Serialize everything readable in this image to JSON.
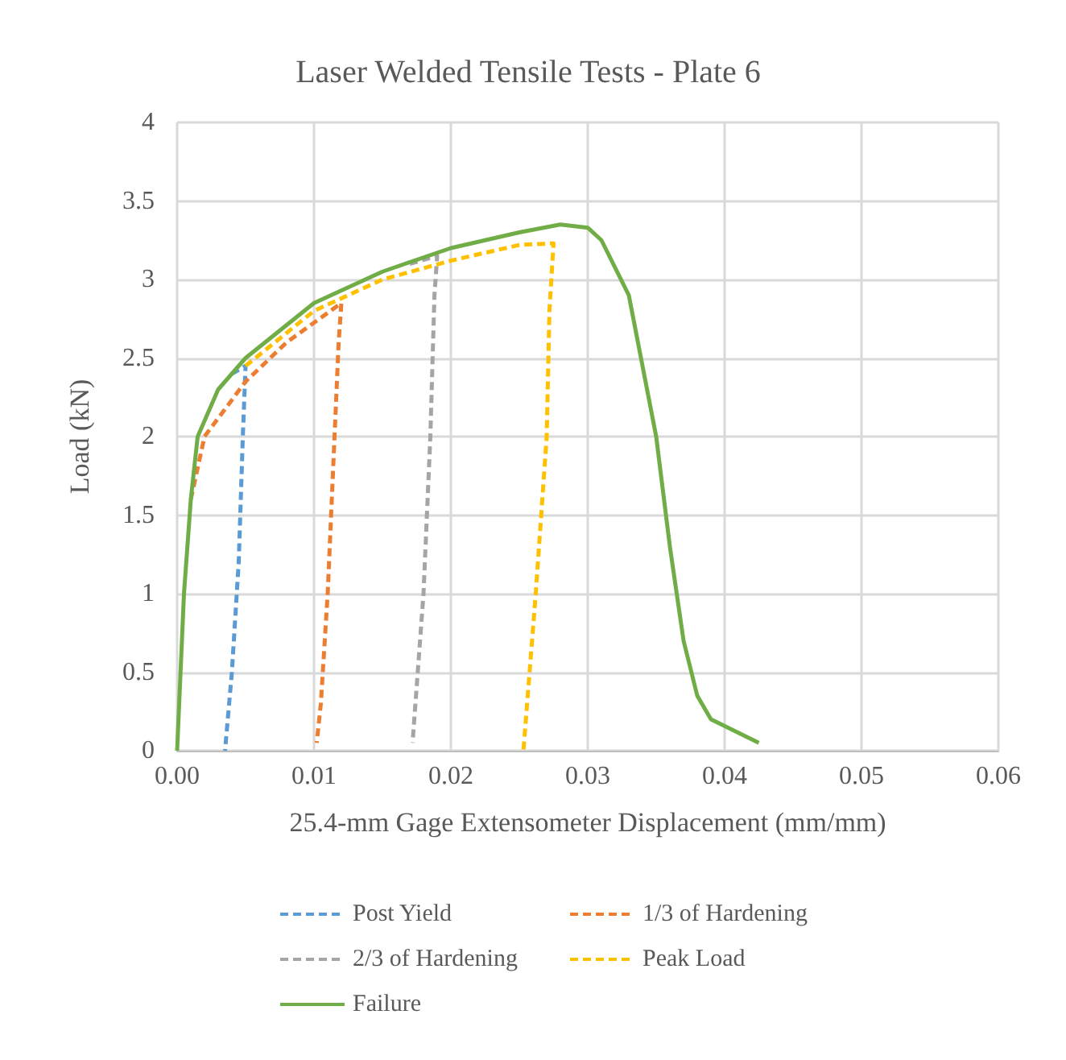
{
  "chart_data": {
    "type": "line",
    "title": "Laser Welded Tensile Tests - Plate 6",
    "xlabel": "25.4-mm Gage Extensometer Displacement (mm/mm)",
    "ylabel": "Load (kN)",
    "xlim": [
      0,
      0.06
    ],
    "xticks": [
      {
        "value": 0,
        "label": "0.00"
      },
      {
        "value": 0.01,
        "label": "0.01"
      },
      {
        "value": 0.02,
        "label": "0.02"
      },
      {
        "value": 0.03,
        "label": "0.03"
      },
      {
        "value": 0.04,
        "label": "0.04"
      },
      {
        "value": 0.05,
        "label": "0.05"
      },
      {
        "value": 0.06,
        "label": "0.06"
      }
    ],
    "ylim": [
      0,
      4
    ],
    "yticks": [
      0,
      0.5,
      1,
      1.5,
      2,
      2.5,
      3,
      3.5,
      4
    ],
    "grid": true,
    "legend": "bottom",
    "marker": "none",
    "series": [
      {
        "name": "Post Yield",
        "color": "#5b9bd5",
        "line_style": "dashed",
        "x": [
          0.004,
          0.005,
          0.0048,
          0.0045,
          0.004,
          0.0035
        ],
        "values": [
          2.4,
          2.45,
          2,
          1.2,
          0.5,
          0
        ]
      },
      {
        "name": "1/3 of Hardening",
        "color": "#ed7d31",
        "line_style": "dashed",
        "x": [
          0.001,
          0.002,
          0.005,
          0.008,
          0.012,
          0.0118,
          0.0115,
          0.011,
          0.0105,
          0.0102
        ],
        "values": [
          1.6,
          2,
          2.35,
          2.6,
          2.85,
          2.6,
          2,
          1,
          0.3,
          0.05
        ]
      },
      {
        "name": "2/3 of Hardening",
        "color": "#a5a5a5",
        "line_style": "dashed",
        "x": [
          0.017,
          0.019,
          0.0188,
          0.0185,
          0.018,
          0.0172
        ],
        "values": [
          3.1,
          3.15,
          2.9,
          2,
          1,
          0.05
        ]
      },
      {
        "name": "Peak Load",
        "color": "#ffc000",
        "line_style": "dashed",
        "x": [
          0.005,
          0.01,
          0.015,
          0.02,
          0.025,
          0.0275,
          0.0272,
          0.027,
          0.0262,
          0.0253
        ],
        "values": [
          2.45,
          2.8,
          3,
          3.12,
          3.22,
          3.23,
          2.8,
          2,
          1,
          0
        ]
      },
      {
        "name": "Failure",
        "color": "#70ad47",
        "line_style": "solid",
        "x": [
          0,
          0.0005,
          0.001,
          0.0015,
          0.003,
          0.005,
          0.01,
          0.015,
          0.02,
          0.025,
          0.028,
          0.03,
          0.031,
          0.033,
          0.035,
          0.036,
          0.037,
          0.038,
          0.039,
          0.0425
        ],
        "values": [
          0,
          1,
          1.6,
          2,
          2.3,
          2.5,
          2.85,
          3.05,
          3.2,
          3.3,
          3.35,
          3.33,
          3.25,
          2.9,
          2,
          1.3,
          0.7,
          0.35,
          0.2,
          0.05
        ]
      }
    ]
  }
}
